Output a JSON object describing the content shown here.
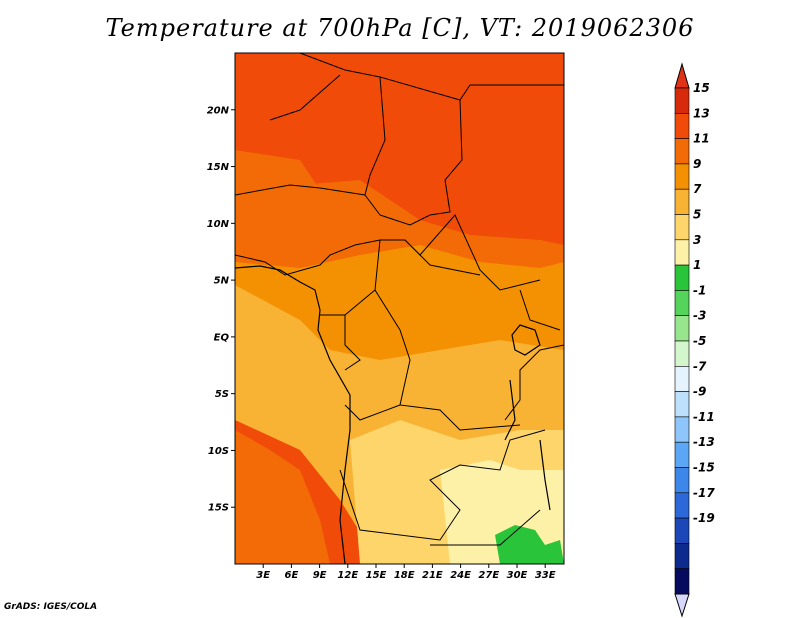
{
  "title": "Temperature at 700hPa [C], VT: 2019062306",
  "credit": "GrADS: IGES/COLA",
  "map": {
    "lon_range": [
      0,
      35
    ],
    "lat_range": [
      -20,
      25
    ],
    "x_ticks": [
      "3E",
      "6E",
      "9E",
      "12E",
      "15E",
      "18E",
      "21E",
      "24E",
      "27E",
      "30E",
      "33E"
    ],
    "y_ticks": [
      "20N",
      "15N",
      "10N",
      "5N",
      "EQ",
      "5S",
      "10S",
      "15S"
    ]
  },
  "colorbar": {
    "labels": [
      "15",
      "13",
      "11",
      "9",
      "7",
      "5",
      "3",
      "1",
      "-1",
      "-3",
      "-5",
      "-7",
      "-9",
      "-11",
      "-13",
      "-15",
      "-17",
      "-19"
    ],
    "colors": [
      "#d62a0a",
      "#f04b08",
      "#f26b06",
      "#f49102",
      "#f8b234",
      "#fdd56a",
      "#fdf1a8",
      "#29c43a",
      "#54d45a",
      "#97e58d",
      "#d3f6cd",
      "#e5f3fe",
      "#bde0fd",
      "#8ec5fb",
      "#5ca7f5",
      "#3e87ea",
      "#2c68d7",
      "#1c47b8",
      "#0d2a8e",
      "#070b5e"
    ],
    "top_color": "#e03216",
    "bottom_color": "#d8d8ff"
  },
  "field": {
    "dominant_colors": {
      "north": "#f04b08",
      "sahel": "#f26b06",
      "central": "#f49102",
      "south_central": "#f8b234",
      "southeast": "#fdd56a",
      "far_southeast": "#fdf1a8",
      "cold_spot": "#29c43a"
    }
  }
}
